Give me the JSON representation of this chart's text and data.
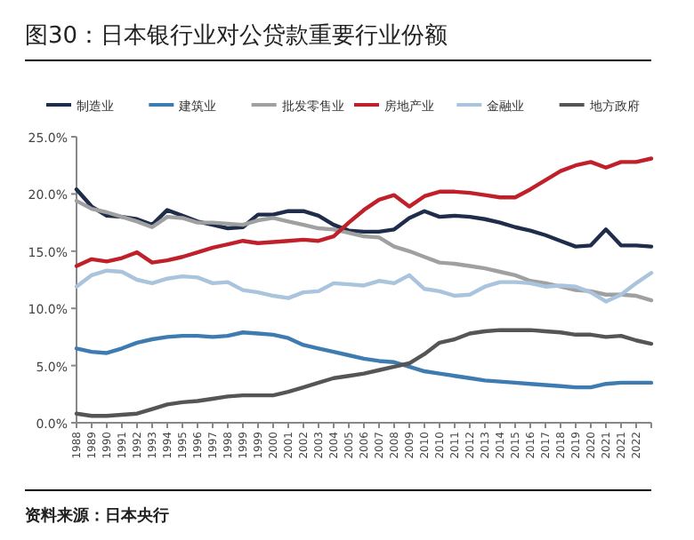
{
  "chart_data": {
    "type": "line",
    "title": "图30：日本银行业对公贷款重要行业份额",
    "categories": [
      "1988",
      "1989",
      "1990",
      "1991",
      "1992",
      "1993",
      "1994",
      "1995",
      "1996",
      "1997",
      "1998",
      "1999",
      "1999",
      "2000",
      "2001",
      "2002",
      "2003",
      "2004",
      "2005",
      "2006",
      "2007",
      "2008",
      "2009",
      "2010",
      "2010",
      "2011",
      "2012",
      "2013",
      "2014",
      "2015",
      "2016",
      "2017",
      "2018",
      "2019",
      "2020",
      "2021",
      "2021",
      "2022",
      null
    ],
    "series": [
      {
        "name": "制造业",
        "color": "#1f2d4a",
        "values": [
          20.4,
          18.9,
          18.1,
          18.0,
          17.8,
          17.3,
          18.6,
          18.1,
          17.6,
          17.3,
          17.0,
          17.1,
          18.2,
          18.2,
          18.5,
          18.5,
          18.1,
          17.3,
          16.8,
          16.7,
          16.7,
          16.9,
          17.9,
          18.5,
          18.0,
          18.1,
          18.0,
          17.8,
          17.5,
          17.1,
          16.8,
          16.4,
          15.9,
          15.4,
          15.5,
          16.9,
          15.5,
          15.5,
          15.4
        ]
      },
      {
        "name": "建筑业",
        "color": "#3d7bb0",
        "values": [
          6.5,
          6.2,
          6.1,
          6.5,
          7.0,
          7.3,
          7.5,
          7.6,
          7.6,
          7.5,
          7.6,
          7.9,
          7.8,
          7.7,
          7.4,
          6.8,
          6.5,
          6.2,
          5.9,
          5.6,
          5.4,
          5.3,
          4.9,
          4.5,
          4.3,
          4.1,
          3.9,
          3.7,
          3.6,
          3.5,
          3.4,
          3.3,
          3.2,
          3.1,
          3.1,
          3.4,
          3.5,
          3.5,
          3.5
        ]
      },
      {
        "name": "批发零售业",
        "color": "#a0a0a0",
        "values": [
          19.4,
          18.7,
          18.4,
          18.0,
          17.6,
          17.1,
          18.0,
          17.9,
          17.5,
          17.5,
          17.4,
          17.3,
          17.7,
          17.9,
          17.6,
          17.3,
          17.0,
          16.9,
          16.6,
          16.3,
          16.2,
          15.4,
          15.0,
          14.5,
          14.0,
          13.9,
          13.7,
          13.5,
          13.2,
          12.9,
          12.4,
          12.2,
          11.9,
          11.6,
          11.5,
          11.2,
          11.2,
          11.1,
          10.7
        ]
      },
      {
        "name": "房地产业",
        "color": "#c0202a",
        "values": [
          13.7,
          14.3,
          14.1,
          14.4,
          14.9,
          14.0,
          14.2,
          14.5,
          14.9,
          15.3,
          15.6,
          15.9,
          15.7,
          15.8,
          15.9,
          16.0,
          15.9,
          16.3,
          17.5,
          18.6,
          19.5,
          19.9,
          18.9,
          19.8,
          20.2,
          20.2,
          20.1,
          19.9,
          19.7,
          19.7,
          20.4,
          21.2,
          22.0,
          22.5,
          22.8,
          22.3,
          22.8,
          22.8,
          23.1
        ]
      },
      {
        "name": "金融业",
        "color": "#a9c4dc",
        "values": [
          11.9,
          12.9,
          13.3,
          13.2,
          12.5,
          12.2,
          12.6,
          12.8,
          12.7,
          12.2,
          12.3,
          11.6,
          11.4,
          11.1,
          10.9,
          11.4,
          11.5,
          12.2,
          12.1,
          12.0,
          12.4,
          12.2,
          12.9,
          11.7,
          11.5,
          11.1,
          11.2,
          11.9,
          12.3,
          12.3,
          12.2,
          11.9,
          12.0,
          11.9,
          11.4,
          10.6,
          11.2,
          12.2,
          13.1
        ]
      },
      {
        "name": "地方政府",
        "color": "#555555",
        "values": [
          0.8,
          0.6,
          0.6,
          0.7,
          0.8,
          1.2,
          1.6,
          1.8,
          1.9,
          2.1,
          2.3,
          2.4,
          2.4,
          2.4,
          2.7,
          3.1,
          3.5,
          3.9,
          4.1,
          4.3,
          4.6,
          4.9,
          5.2,
          6.0,
          7.0,
          7.3,
          7.8,
          8.0,
          8.1,
          8.1,
          8.1,
          8.0,
          7.9,
          7.7,
          7.7,
          7.5,
          7.6,
          7.2,
          6.9
        ]
      }
    ],
    "ylim": [
      0,
      25
    ],
    "yticks": [
      {
        "value": 0,
        "label": "0.0%"
      },
      {
        "value": 5,
        "label": "5.0%"
      },
      {
        "value": 10,
        "label": "10.0%"
      },
      {
        "value": 15,
        "label": "15.0%"
      },
      {
        "value": 20,
        "label": "20.0%"
      },
      {
        "value": 25,
        "label": "25.0%"
      }
    ],
    "legend": "top",
    "grid": false,
    "marker": "none",
    "line_style": "solid",
    "annotations": [
      "资料来源：日本央行"
    ]
  }
}
